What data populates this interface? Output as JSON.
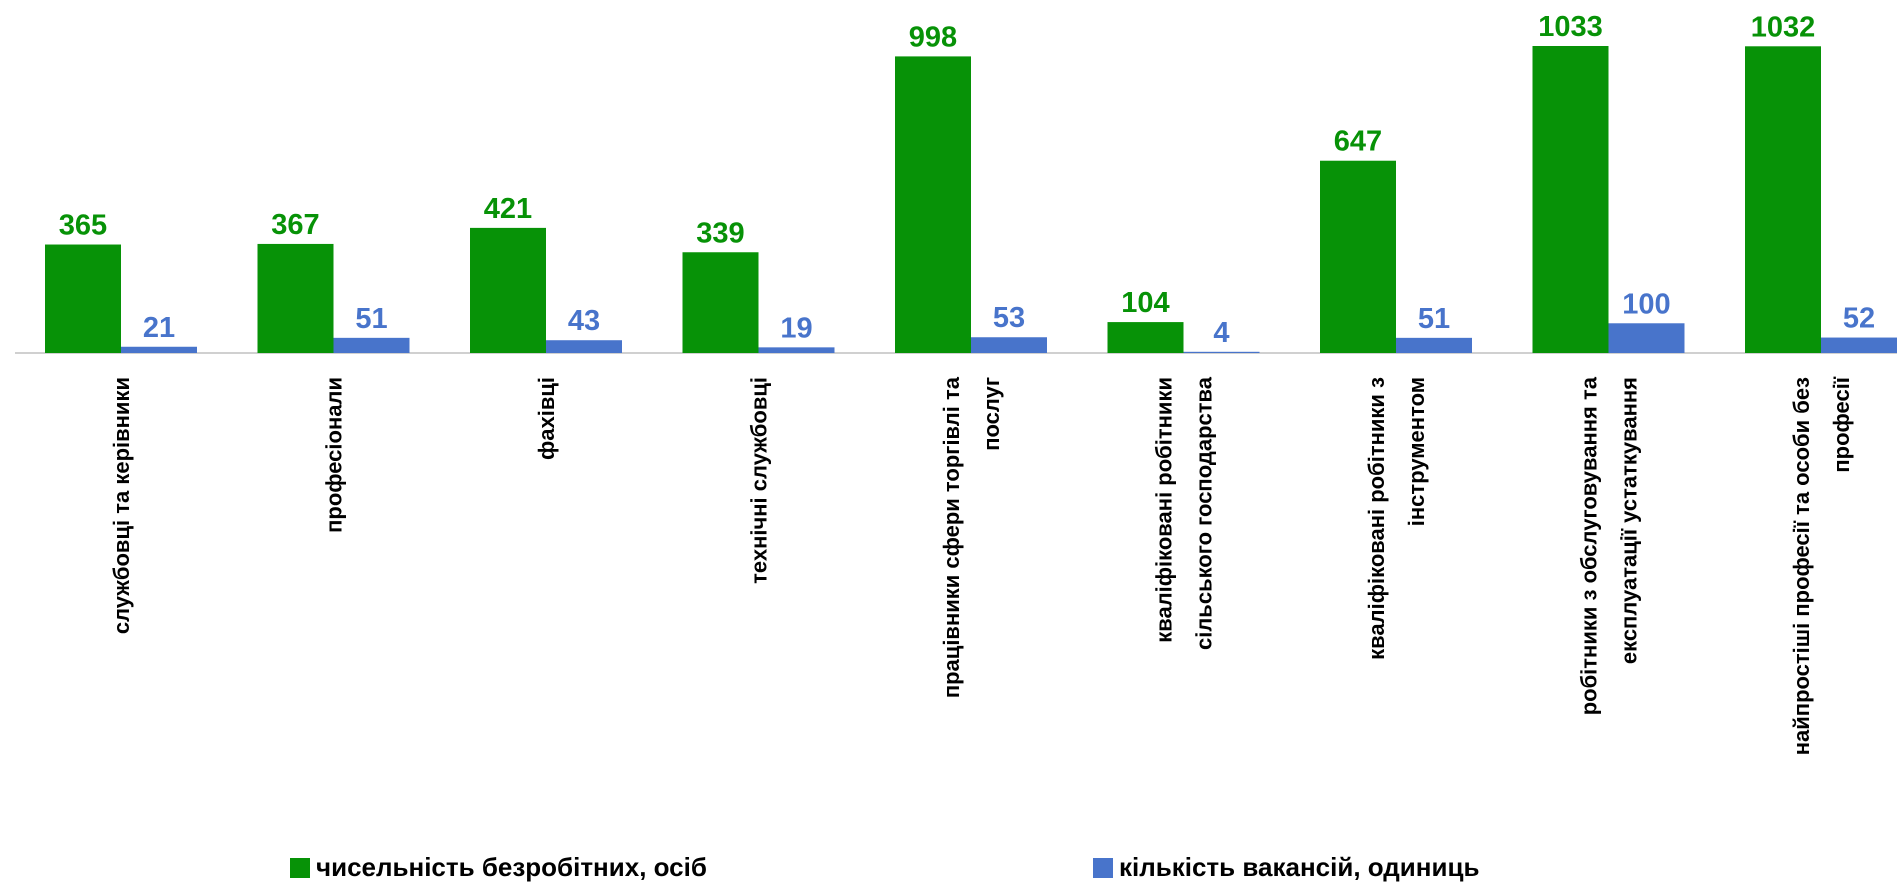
{
  "colors": {
    "unemployed": "#079207",
    "vacancies": "#4874CB",
    "axis": "#d0d0d0",
    "text": "#000000"
  },
  "chart_data": {
    "type": "bar",
    "categories": [
      [
        "службовці та керівники"
      ],
      [
        "професіонали"
      ],
      [
        "фахівці"
      ],
      [
        "технічні службовці"
      ],
      [
        "працівники сфери торгівлі та",
        "послуг"
      ],
      [
        "кваліфіковані робітники",
        "сільського господарства"
      ],
      [
        "кваліфіковані робітники з",
        "інструментом"
      ],
      [
        "робітники з обслуговування та",
        "експлуатації устаткування"
      ],
      [
        "найпростіші професії та особи без",
        "професії"
      ]
    ],
    "series": [
      {
        "name": "чисельність безробітних,  осіб",
        "values": [
          365,
          367,
          421,
          339,
          998,
          104,
          647,
          1033,
          1032
        ]
      },
      {
        "name": "кількість вакансій, одиниць",
        "values": [
          21,
          51,
          43,
          19,
          53,
          4,
          51,
          100,
          52
        ]
      }
    ],
    "ylim": [
      0,
      1033
    ],
    "grid": false,
    "legend_position": "bottom",
    "data_labels": true
  }
}
